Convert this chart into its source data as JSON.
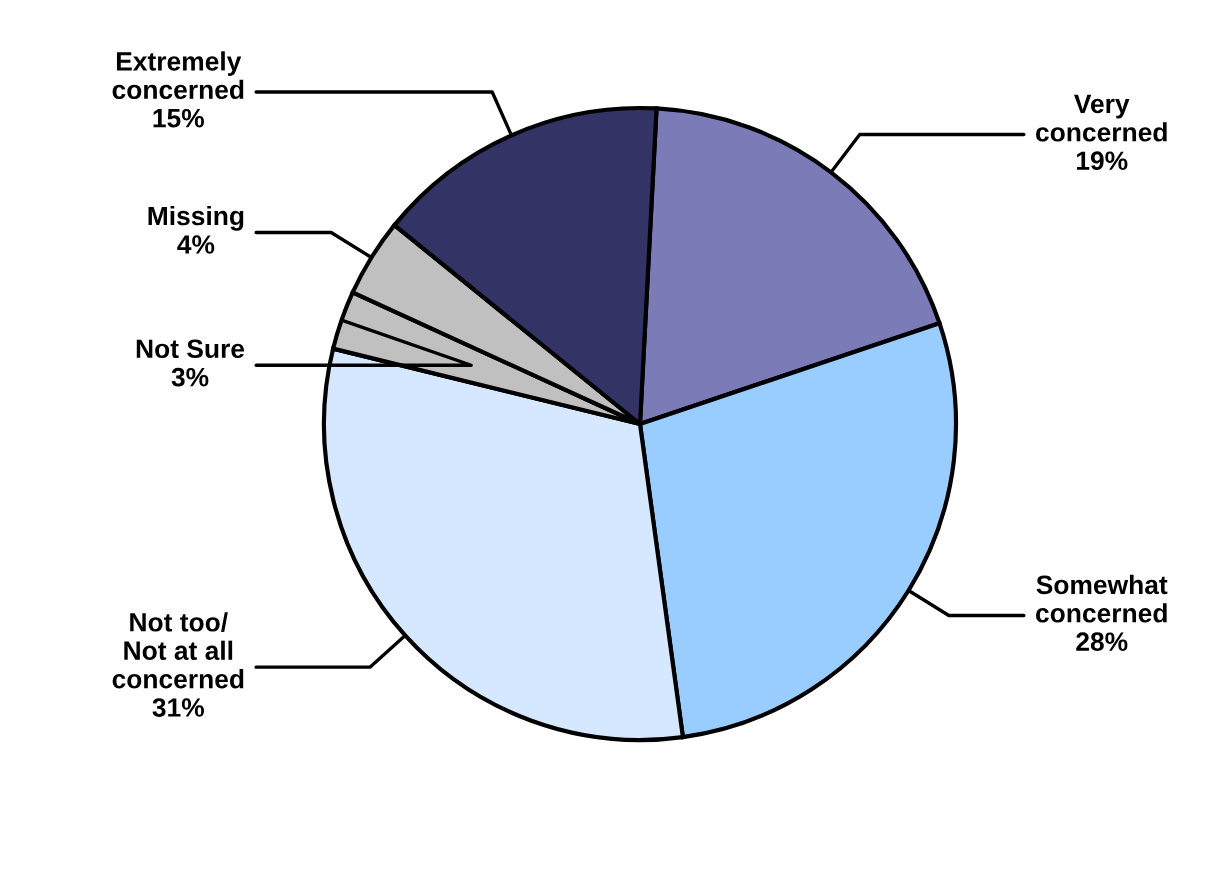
{
  "chart_data": {
    "type": "pie",
    "categories": [
      "Very\nconcerned",
      "Somewhat\nconcerned",
      "Not too/\nNot at all\nconcerned",
      "Not Sure",
      "Missing",
      "Extremely\nconcerned"
    ],
    "values": [
      19,
      28,
      31,
      3,
      4,
      15
    ],
    "value_labels": [
      "19%",
      "28%",
      "31%",
      "3%",
      "4%",
      "15%"
    ],
    "colors": [
      "#7b7bb8",
      "#99ccff",
      "#d6e8ff",
      "#c0c0c0",
      "#c0c0c0",
      "#333366"
    ],
    "legend": false
  }
}
